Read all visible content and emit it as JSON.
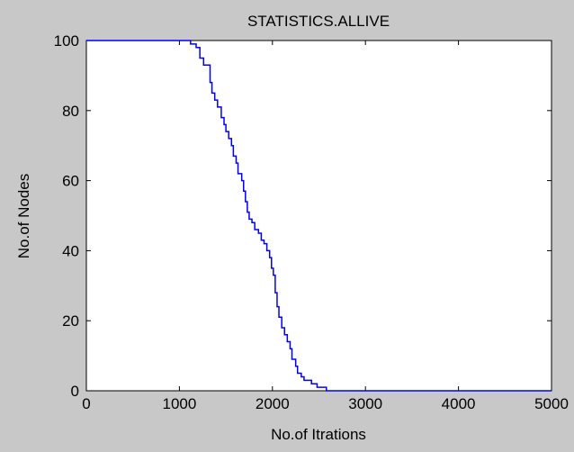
{
  "chart_data": {
    "type": "line",
    "title": "STATISTICS.ALLIVE",
    "xlabel": "No.of Itrations",
    "ylabel": "No.of Nodes",
    "xlim": [
      0,
      5000
    ],
    "ylim": [
      0,
      100
    ],
    "xticks": [
      0,
      1000,
      2000,
      3000,
      4000,
      5000
    ],
    "yticks": [
      0,
      20,
      40,
      60,
      80,
      100
    ],
    "grid": false,
    "line_color": "#0000ff",
    "background_color": "#c8c8c8",
    "plot_area_color": "#ffffff",
    "series": [
      {
        "points": [
          [
            0,
            100
          ],
          [
            1120,
            100
          ],
          [
            1120,
            99
          ],
          [
            1180,
            99
          ],
          [
            1180,
            98
          ],
          [
            1220,
            98
          ],
          [
            1220,
            95
          ],
          [
            1260,
            95
          ],
          [
            1260,
            93
          ],
          [
            1330,
            93
          ],
          [
            1330,
            88
          ],
          [
            1350,
            88
          ],
          [
            1350,
            85
          ],
          [
            1380,
            85
          ],
          [
            1380,
            83
          ],
          [
            1410,
            83
          ],
          [
            1410,
            81
          ],
          [
            1450,
            81
          ],
          [
            1450,
            78
          ],
          [
            1480,
            78
          ],
          [
            1480,
            76
          ],
          [
            1500,
            76
          ],
          [
            1500,
            74
          ],
          [
            1530,
            74
          ],
          [
            1530,
            72
          ],
          [
            1560,
            72
          ],
          [
            1560,
            70
          ],
          [
            1580,
            70
          ],
          [
            1580,
            67
          ],
          [
            1610,
            67
          ],
          [
            1610,
            65
          ],
          [
            1630,
            65
          ],
          [
            1630,
            62
          ],
          [
            1670,
            62
          ],
          [
            1670,
            60
          ],
          [
            1690,
            60
          ],
          [
            1690,
            57
          ],
          [
            1710,
            57
          ],
          [
            1710,
            54
          ],
          [
            1730,
            54
          ],
          [
            1730,
            51
          ],
          [
            1750,
            51
          ],
          [
            1750,
            49
          ],
          [
            1780,
            49
          ],
          [
            1780,
            48
          ],
          [
            1810,
            48
          ],
          [
            1810,
            46
          ],
          [
            1850,
            46
          ],
          [
            1850,
            45
          ],
          [
            1880,
            45
          ],
          [
            1880,
            43
          ],
          [
            1910,
            43
          ],
          [
            1910,
            42
          ],
          [
            1940,
            42
          ],
          [
            1940,
            40
          ],
          [
            1970,
            40
          ],
          [
            1970,
            38
          ],
          [
            1990,
            38
          ],
          [
            1990,
            35
          ],
          [
            2010,
            35
          ],
          [
            2010,
            33
          ],
          [
            2030,
            33
          ],
          [
            2030,
            28
          ],
          [
            2050,
            28
          ],
          [
            2050,
            24
          ],
          [
            2070,
            24
          ],
          [
            2070,
            21
          ],
          [
            2100,
            21
          ],
          [
            2100,
            18
          ],
          [
            2130,
            18
          ],
          [
            2130,
            16
          ],
          [
            2160,
            16
          ],
          [
            2160,
            14
          ],
          [
            2190,
            14
          ],
          [
            2190,
            12
          ],
          [
            2210,
            12
          ],
          [
            2210,
            9
          ],
          [
            2250,
            9
          ],
          [
            2250,
            7
          ],
          [
            2270,
            7
          ],
          [
            2270,
            5
          ],
          [
            2310,
            5
          ],
          [
            2310,
            4
          ],
          [
            2340,
            4
          ],
          [
            2340,
            3
          ],
          [
            2420,
            3
          ],
          [
            2420,
            2
          ],
          [
            2480,
            2
          ],
          [
            2480,
            1
          ],
          [
            2580,
            1
          ],
          [
            2580,
            0
          ],
          [
            5000,
            0
          ]
        ]
      }
    ]
  }
}
